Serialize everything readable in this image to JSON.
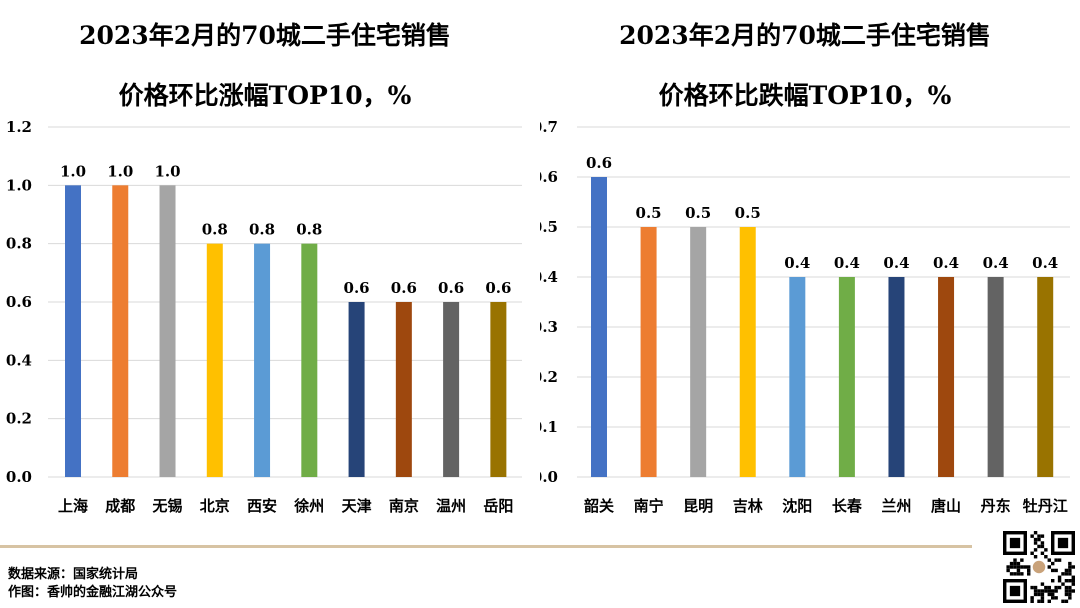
{
  "footer": {
    "source": "数据来源：国家统计局",
    "author": "作图：香帅的金融江湖公众号"
  },
  "qr": {
    "icon": "qr-code-icon"
  },
  "chart_data": [
    {
      "type": "bar",
      "title_line1": "2023年2月的70城二手住宅销售",
      "title_line2": "价格环比涨幅TOP10，%",
      "categories": [
        "上海",
        "成都",
        "无锡",
        "北京",
        "西安",
        "徐州",
        "天津",
        "南京",
        "温州",
        "岳阳"
      ],
      "values": [
        1.0,
        1.0,
        1.0,
        0.8,
        0.8,
        0.8,
        0.6,
        0.6,
        0.6,
        0.6
      ],
      "colors": [
        "#4472c4",
        "#ed7d31",
        "#a5a5a5",
        "#ffc000",
        "#5b9bd5",
        "#70ad47",
        "#264478",
        "#9e480e",
        "#636363",
        "#997300"
      ],
      "ylim": [
        0,
        1.2
      ],
      "yticks": [
        "0.0",
        "0.2",
        "0.4",
        "0.6",
        "0.8",
        "1.0",
        "1.2"
      ],
      "grid": true
    },
    {
      "type": "bar",
      "title_line1": "2023年2月的70城二手住宅销售",
      "title_line2": "价格环比跌幅TOP10，%",
      "categories": [
        "韶关",
        "南宁",
        "昆明",
        "吉林",
        "沈阳",
        "长春",
        "兰州",
        "唐山",
        "丹东",
        "牡丹江"
      ],
      "values": [
        0.6,
        0.5,
        0.5,
        0.5,
        0.4,
        0.4,
        0.4,
        0.4,
        0.4,
        0.4
      ],
      "colors": [
        "#4472c4",
        "#ed7d31",
        "#a5a5a5",
        "#ffc000",
        "#5b9bd5",
        "#70ad47",
        "#264478",
        "#9e480e",
        "#636363",
        "#997300"
      ],
      "ylim": [
        0,
        0.7
      ],
      "yticks": [
        "0.0",
        "0.1",
        "0.2",
        "0.3",
        "0.4",
        "0.5",
        "0.6",
        "0.7"
      ],
      "grid": true
    }
  ]
}
